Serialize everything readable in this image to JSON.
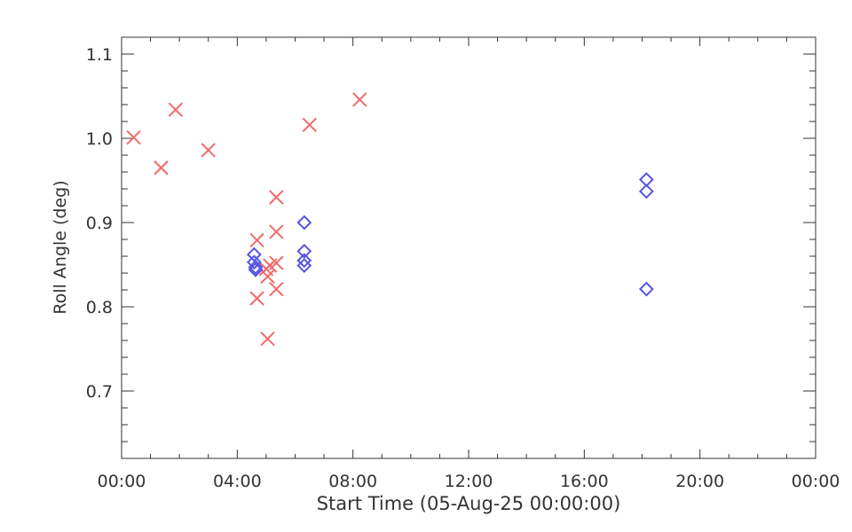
{
  "chart_data": {
    "type": "scatter",
    "title": "",
    "xlabel": "Start Time (05-Aug-25 00:00:00)",
    "ylabel": "Roll Angle (deg)",
    "xlim": [
      "00:00",
      "24:00"
    ],
    "ylim": [
      0.62,
      1.12
    ],
    "x_ticks": [
      "00:00",
      "04:00",
      "08:00",
      "12:00",
      "16:00",
      "20:00",
      "00:00"
    ],
    "y_ticks": [
      "0.7",
      "0.8",
      "0.9",
      "1.0",
      "1.1"
    ],
    "grid": false,
    "legend": "none",
    "series": [
      {
        "marker": "x",
        "color": "#f06a6a",
        "points": [
          [
            "00:25",
            1.001
          ],
          [
            "01:22",
            0.965
          ],
          [
            "01:52",
            1.034
          ],
          [
            "03:00",
            0.986
          ],
          [
            "04:41",
            0.879
          ],
          [
            "04:41",
            0.81
          ],
          [
            "05:00",
            0.845
          ],
          [
            "05:03",
            0.836
          ],
          [
            "05:03",
            0.762
          ],
          [
            "05:08",
            0.849
          ],
          [
            "05:21",
            0.93
          ],
          [
            "05:21",
            0.889
          ],
          [
            "05:21",
            0.852
          ],
          [
            "05:21",
            0.821
          ],
          [
            "06:30",
            1.016
          ],
          [
            "08:14",
            1.046
          ]
        ]
      },
      {
        "marker": "diamond",
        "color": "#5555e6",
        "points": [
          [
            "04:35",
            0.862
          ],
          [
            "04:35",
            0.853
          ],
          [
            "04:38",
            0.847
          ],
          [
            "04:38",
            0.844
          ],
          [
            "06:19",
            0.9
          ],
          [
            "06:19",
            0.866
          ],
          [
            "06:19",
            0.855
          ],
          [
            "06:19",
            0.849
          ],
          [
            "18:09",
            0.951
          ],
          [
            "18:09",
            0.937
          ],
          [
            "18:09",
            0.821
          ]
        ]
      }
    ]
  }
}
